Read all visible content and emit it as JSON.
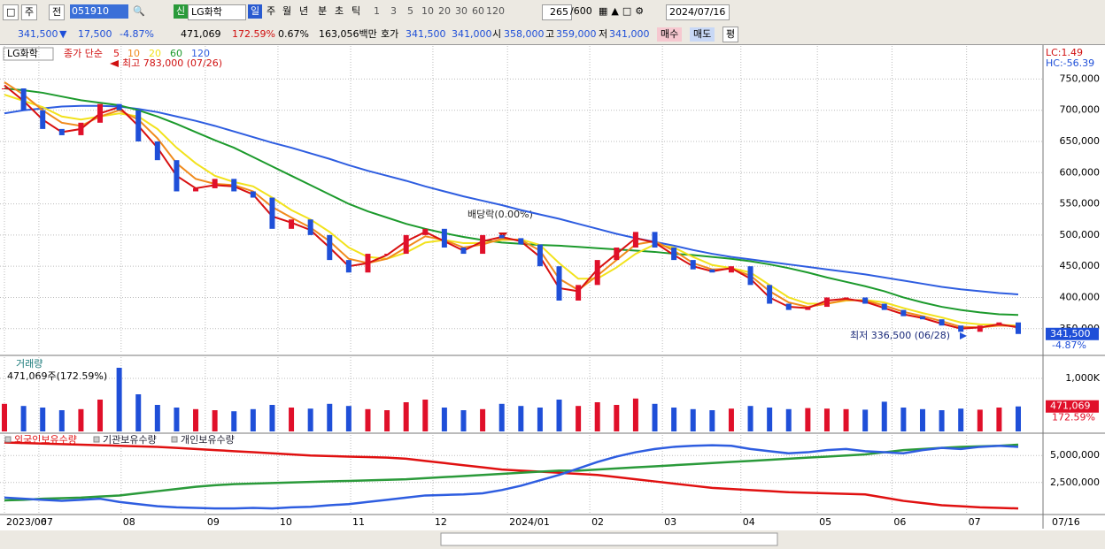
{
  "toolbar": {
    "row1": [
      "주",
      "전",
      "051910",
      "LG화학",
      "신",
      "일",
      "주",
      "월",
      "년",
      "분",
      "초",
      "틱",
      "1",
      "3",
      "5",
      "10",
      "20",
      "30",
      "60",
      "120",
      "265",
      "/600",
      "2024/07/16"
    ],
    "row2": [
      "341,500",
      "▼",
      "17,500",
      "-4.87%",
      "471,069",
      "172.59%",
      "0.67%",
      "163,056백만",
      "호가",
      "341,500",
      "341,000",
      "시",
      "358,000",
      "고",
      "359,000",
      "저",
      "341,000",
      "매수",
      "매도",
      "평"
    ]
  },
  "date_end": "07/16",
  "chart_data": [
    {
      "type": "candlestick",
      "title": "LG화학",
      "legend_title": "종가 단순",
      "up_color": "#e0102a",
      "down_color": "#1f4fd8",
      "close": [
        735000,
        700000,
        670000,
        660000,
        680000,
        710000,
        700000,
        650000,
        620000,
        570000,
        575000,
        590000,
        570000,
        560000,
        510000,
        525000,
        500000,
        460000,
        440000,
        470000,
        470000,
        500000,
        510000,
        480000,
        470000,
        500000,
        495000,
        485000,
        450000,
        395000,
        420000,
        460000,
        480000,
        505000,
        480000,
        460000,
        445000,
        440000,
        450000,
        420000,
        390000,
        380000,
        385000,
        400000,
        400000,
        390000,
        380000,
        370000,
        365000,
        355000,
        345000,
        355000,
        360000,
        341500
      ],
      "series": [
        {
          "name": "5",
          "color": "#d81010",
          "values": [
            740000,
            715000,
            685000,
            665000,
            670000,
            695000,
            705000,
            675000,
            640000,
            595000,
            575000,
            580000,
            578000,
            565000,
            530000,
            520000,
            508000,
            480000,
            450000,
            455000,
            468000,
            490000,
            505000,
            490000,
            475000,
            490000,
            497000,
            490000,
            465000,
            415000,
            410000,
            445000,
            470000,
            495000,
            488000,
            468000,
            450000,
            442000,
            447000,
            430000,
            400000,
            385000,
            383000,
            395000,
            398000,
            393000,
            383000,
            373000,
            367000,
            358000,
            350000,
            352000,
            357000,
            352000
          ]
        },
        {
          "name": "10",
          "color": "#f08a1c",
          "values": [
            745000,
            725000,
            700000,
            680000,
            675000,
            690000,
            700000,
            685000,
            655000,
            615000,
            590000,
            582000,
            580000,
            570000,
            545000,
            528000,
            512000,
            490000,
            462000,
            455000,
            462000,
            480000,
            498000,
            492000,
            480000,
            485000,
            494000,
            492000,
            475000,
            430000,
            412000,
            435000,
            460000,
            485000,
            490000,
            475000,
            455000,
            445000,
            446000,
            435000,
            410000,
            392000,
            385000,
            390000,
            396000,
            395000,
            387000,
            377000,
            370000,
            362000,
            353000,
            352000,
            355000,
            354000
          ]
        },
        {
          "name": "20",
          "color": "#f2e21c",
          "values": [
            725000,
            715000,
            705000,
            690000,
            685000,
            690000,
            695000,
            690000,
            670000,
            640000,
            615000,
            595000,
            585000,
            578000,
            560000,
            540000,
            525000,
            505000,
            480000,
            465000,
            462000,
            472000,
            488000,
            492000,
            487000,
            487000,
            492000,
            493000,
            484000,
            455000,
            430000,
            430000,
            448000,
            470000,
            485000,
            480000,
            465000,
            452000,
            447000,
            440000,
            420000,
            400000,
            390000,
            390000,
            395000,
            396000,
            392000,
            383000,
            375000,
            368000,
            360000,
            357000,
            356000,
            355000
          ]
        },
        {
          "name": "60",
          "color": "#1c9a2c",
          "values": [
            735000,
            732000,
            728000,
            722000,
            716000,
            712000,
            708000,
            700000,
            690000,
            678000,
            665000,
            652000,
            640000,
            625000,
            610000,
            595000,
            580000,
            565000,
            550000,
            538000,
            528000,
            518000,
            510000,
            503000,
            497000,
            492000,
            488000,
            486000,
            484000,
            483000,
            481000,
            479000,
            477000,
            475000,
            473000,
            470000,
            468000,
            465000,
            462000,
            458000,
            453000,
            447000,
            440000,
            432000,
            425000,
            418000,
            410000,
            400000,
            392000,
            385000,
            380000,
            376000,
            373000,
            372000
          ]
        },
        {
          "name": "120",
          "color": "#2e5de0",
          "values": [
            695000,
            700000,
            703000,
            706000,
            707000,
            707000,
            706000,
            702000,
            697000,
            690000,
            683000,
            675000,
            666000,
            657000,
            648000,
            640000,
            631000,
            622000,
            612000,
            603000,
            595000,
            587000,
            578000,
            570000,
            562000,
            555000,
            548000,
            540000,
            533000,
            526000,
            518000,
            510000,
            502000,
            495000,
            489000,
            483000,
            476000,
            470000,
            465000,
            461000,
            457000,
            453000,
            449000,
            445000,
            441000,
            437000,
            432000,
            427000,
            422000,
            417000,
            413000,
            410000,
            407000,
            405000
          ]
        }
      ],
      "xlim": [
        0,
        53
      ],
      "xticks": [
        {
          "value": 0,
          "label": "2023/06"
        },
        {
          "value": 1.8,
          "label": "07"
        },
        {
          "value": 6.1,
          "label": "08"
        },
        {
          "value": 10.5,
          "label": "09"
        },
        {
          "value": 14.3,
          "label": "10"
        },
        {
          "value": 18.1,
          "label": "11"
        },
        {
          "value": 22.4,
          "label": "12"
        },
        {
          "value": 26.3,
          "label": "2024/01"
        },
        {
          "value": 30.6,
          "label": "02"
        },
        {
          "value": 34.4,
          "label": "03"
        },
        {
          "value": 38.5,
          "label": "04"
        },
        {
          "value": 42.5,
          "label": "05"
        },
        {
          "value": 46.4,
          "label": "06"
        },
        {
          "value": 50.3,
          "label": "07"
        }
      ],
      "ylim": [
        310000,
        803000
      ],
      "yticks": [
        {
          "value": 750000,
          "label": "750,000"
        },
        {
          "value": 700000,
          "label": "700,000"
        },
        {
          "value": 650000,
          "label": "650,000"
        },
        {
          "value": 600000,
          "label": "600,000"
        },
        {
          "value": 550000,
          "label": "550,000"
        },
        {
          "value": 500000,
          "label": "500,000"
        },
        {
          "value": 450000,
          "label": "450,000"
        },
        {
          "value": 400000,
          "label": "400,000"
        },
        {
          "value": 350000,
          "label": "350,000"
        }
      ],
      "annotations": {
        "high": "최고 783,000 (07/26)",
        "low": "최저 336,500 (06/28)",
        "dividend": "배당락(0.00%)"
      },
      "right_labels": {
        "lc": "LC:1.49",
        "hc": "HC:-56.39",
        "last": "341,500",
        "change": "-4.87%"
      }
    },
    {
      "type": "bar",
      "title": "거래량",
      "subtitle": "471,069주(172.59%)",
      "values": [
        520000,
        480000,
        450000,
        400000,
        420000,
        600000,
        1200000,
        700000,
        500000,
        450000,
        420000,
        400000,
        380000,
        420000,
        500000,
        450000,
        430000,
        520000,
        480000,
        420000,
        400000,
        550000,
        600000,
        450000,
        400000,
        420000,
        520000,
        480000,
        450000,
        600000,
        480000,
        550000,
        500000,
        620000,
        520000,
        450000,
        420000,
        400000,
        430000,
        480000,
        450000,
        420000,
        440000,
        430000,
        420000,
        410000,
        560000,
        450000,
        420000,
        400000,
        430000,
        410000,
        450000,
        471069
      ],
      "ylim": [
        0,
        1400000
      ],
      "yticks": [
        {
          "value": 1000000,
          "label": "1,000K"
        }
      ],
      "last_label": "471,069",
      "ratio_label": "172.59%"
    },
    {
      "type": "line",
      "series": [
        {
          "name": "외국인보유수량",
          "color": "#e01010",
          "values": [
            6200000,
            6150000,
            6100000,
            6050000,
            6000000,
            5950000,
            5900000,
            5850000,
            5800000,
            5700000,
            5600000,
            5500000,
            5400000,
            5300000,
            5200000,
            5100000,
            5000000,
            4950000,
            4900000,
            4850000,
            4800000,
            4700000,
            4500000,
            4300000,
            4100000,
            3900000,
            3700000,
            3600000,
            3500000,
            3400000,
            3300000,
            3200000,
            3000000,
            2800000,
            2600000,
            2400000,
            2200000,
            2000000,
            1900000,
            1800000,
            1700000,
            1600000,
            1550000,
            1500000,
            1450000,
            1400000,
            1100000,
            800000,
            600000,
            400000,
            300000,
            200000,
            150000,
            100000
          ]
        },
        {
          "name": "기관보유수량",
          "color": "#2a9a3a",
          "values": [
            850000,
            900000,
            1000000,
            1050000,
            1100000,
            1200000,
            1300000,
            1500000,
            1700000,
            1900000,
            2100000,
            2250000,
            2350000,
            2400000,
            2450000,
            2500000,
            2550000,
            2600000,
            2650000,
            2700000,
            2750000,
            2800000,
            2900000,
            3000000,
            3100000,
            3200000,
            3300000,
            3400000,
            3500000,
            3600000,
            3600000,
            3700000,
            3800000,
            3900000,
            4000000,
            4100000,
            4200000,
            4300000,
            4400000,
            4500000,
            4600000,
            4700000,
            4800000,
            4900000,
            5000000,
            5100000,
            5300000,
            5500000,
            5600000,
            5700000,
            5800000,
            5850000,
            5900000,
            6000000
          ]
        },
        {
          "name": "개인보유수량",
          "color": "#2e5de0",
          "values": [
            1100000,
            1000000,
            900000,
            800000,
            900000,
            1000000,
            700000,
            500000,
            300000,
            200000,
            150000,
            100000,
            100000,
            150000,
            100000,
            200000,
            250000,
            400000,
            500000,
            700000,
            900000,
            1100000,
            1300000,
            1350000,
            1400000,
            1500000,
            1800000,
            2200000,
            2700000,
            3200000,
            3800000,
            4400000,
            4900000,
            5300000,
            5600000,
            5800000,
            5900000,
            5950000,
            5900000,
            5600000,
            5400000,
            5200000,
            5300000,
            5500000,
            5600000,
            5400000,
            5300000,
            5200000,
            5500000,
            5700000,
            5600000,
            5800000,
            5900000,
            5800000
          ]
        }
      ],
      "ylim": [
        -300000,
        6900000
      ],
      "yticks": [
        {
          "value": 5000000,
          "label": "5,000,000"
        },
        {
          "value": 2500000,
          "label": "2,500,000"
        }
      ]
    }
  ]
}
